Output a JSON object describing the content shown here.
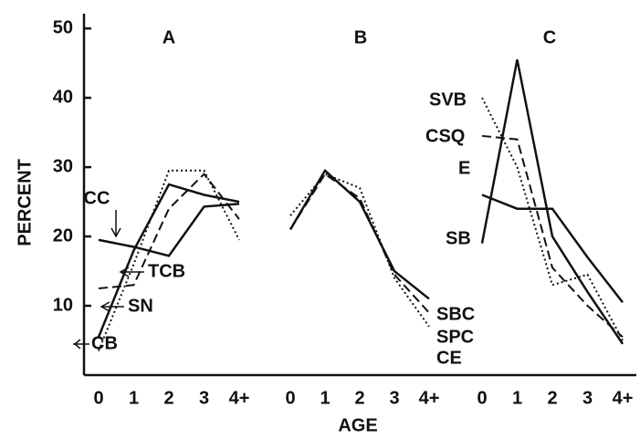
{
  "chart_data": [
    {
      "type": "line",
      "title": "A",
      "ylabel": "PERCENT",
      "ylim": [
        0,
        52
      ],
      "yticks": [
        10,
        20,
        30,
        40,
        50
      ],
      "categories": [
        "0",
        "1",
        "2",
        "3",
        "4+"
      ],
      "series": [
        {
          "name": "CC",
          "style": "solid",
          "color": "#111",
          "values": [
            19.5,
            18.5,
            17.2,
            24.3,
            24.7
          ]
        },
        {
          "name": "TCB",
          "style": "dashed",
          "color": "#111",
          "values": [
            12.5,
            13,
            24,
            29,
            22.5
          ]
        },
        {
          "name": "SN",
          "style": "solid",
          "color": "#111",
          "values": [
            5.5,
            18,
            27.5,
            26,
            25
          ]
        },
        {
          "name": "CB",
          "style": "dotted",
          "color": "#111",
          "values": [
            3.5,
            16,
            29.5,
            29.5,
            19.5
          ]
        }
      ]
    },
    {
      "type": "line",
      "title": "B",
      "xlabel": "AGE",
      "categories": [
        "0",
        "1",
        "2",
        "3",
        "4+"
      ],
      "series": [
        {
          "name": "SBC",
          "style": "solid",
          "color": "#111",
          "values": [
            21,
            29.5,
            25,
            15,
            11
          ]
        },
        {
          "name": "SPC",
          "style": "dashed",
          "color": "#111",
          "values": [
            21,
            29,
            25.5,
            14.5,
            9
          ]
        },
        {
          "name": "CE",
          "style": "dotted",
          "color": "#111",
          "values": [
            23,
            29,
            27,
            14,
            7
          ]
        }
      ]
    },
    {
      "type": "line",
      "title": "C",
      "categories": [
        "0",
        "1",
        "2",
        "3",
        "4+"
      ],
      "series": [
        {
          "name": "SVB",
          "style": "dotted",
          "color": "#111",
          "values": [
            40,
            30,
            13,
            14.5,
            5
          ]
        },
        {
          "name": "CSQ",
          "style": "dashed",
          "color": "#111",
          "values": [
            34.5,
            34,
            15.5,
            10,
            5.5
          ]
        },
        {
          "name": "E",
          "style": "solid",
          "color": "#111",
          "values": [
            26,
            24,
            24,
            17,
            10.5
          ]
        },
        {
          "name": "SB",
          "style": "solid",
          "color": "#111",
          "values": [
            19,
            45.5,
            20,
            12,
            4.5
          ]
        }
      ]
    }
  ]
}
